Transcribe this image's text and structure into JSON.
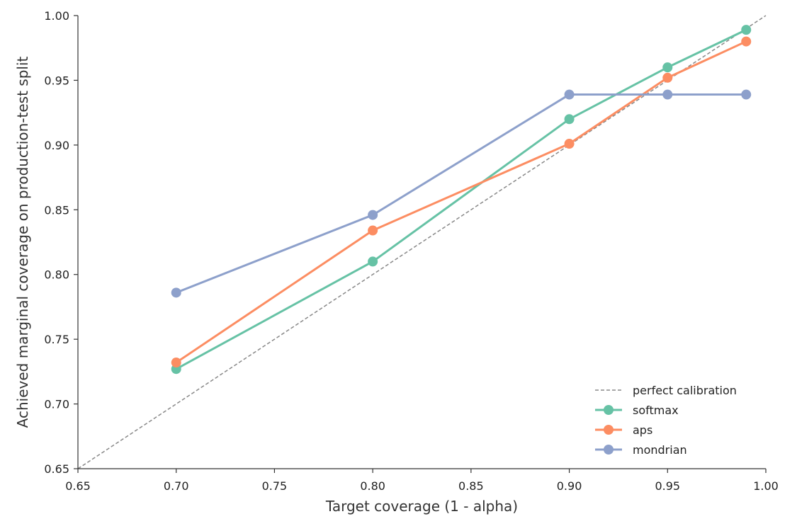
{
  "chart_data": {
    "type": "line",
    "title": "",
    "xlabel": "Target coverage (1 - alpha)",
    "ylabel": "Achieved marginal coverage on production-test split",
    "xlim": [
      0.65,
      1.0
    ],
    "ylim": [
      0.65,
      1.0
    ],
    "xticks": [
      "0.65",
      "0.70",
      "0.75",
      "0.80",
      "0.85",
      "0.90",
      "0.95",
      "1.00"
    ],
    "yticks": [
      "0.65",
      "0.70",
      "0.75",
      "0.80",
      "0.85",
      "0.90",
      "0.95",
      "1.00"
    ],
    "grid": false,
    "legend_position": "lower-right",
    "reference_line": {
      "name": "perfect calibration",
      "x": [
        0.65,
        1.0
      ],
      "y": [
        0.65,
        1.0
      ],
      "color": "#888888",
      "style": "dashed"
    },
    "x": [
      0.7,
      0.8,
      0.9,
      0.95,
      0.99
    ],
    "series": [
      {
        "name": "softmax",
        "color": "#66c2a5",
        "values": [
          0.727,
          0.81,
          0.92,
          0.96,
          0.989
        ]
      },
      {
        "name": "aps",
        "color": "#fc8d62",
        "values": [
          0.732,
          0.834,
          0.901,
          0.952,
          0.98
        ]
      },
      {
        "name": "mondrian",
        "color": "#8da0cb",
        "values": [
          0.786,
          0.846,
          0.939,
          0.939,
          0.939
        ]
      }
    ]
  }
}
